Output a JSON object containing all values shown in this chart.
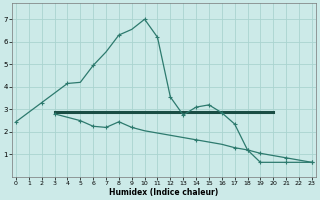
{
  "xlabel": "Humidex (Indice chaleur)",
  "background_color": "#cceae8",
  "grid_color": "#aad4d0",
  "line_color": "#2d7a6e",
  "line_color_thick": "#1a4d44",
  "curve1_x": [
    0,
    2,
    4,
    5,
    6,
    7,
    8,
    9,
    10,
    11,
    12,
    13,
    14,
    15,
    16,
    17,
    18,
    19,
    20,
    21,
    22,
    23
  ],
  "curve1_y": [
    2.45,
    3.3,
    4.15,
    4.2,
    4.95,
    5.55,
    6.3,
    6.55,
    7.0,
    6.2,
    3.55,
    2.75,
    3.1,
    3.2,
    2.85,
    2.35,
    1.2,
    0.65,
    0.65,
    0.65,
    0.65,
    0.65
  ],
  "curve1_marker_x": [
    0,
    2,
    4,
    6,
    8,
    10,
    11,
    12,
    13,
    14,
    15,
    16,
    17,
    18,
    19,
    21,
    23
  ],
  "curve1_marker_y": [
    2.45,
    3.3,
    4.15,
    4.95,
    6.3,
    7.0,
    6.2,
    3.55,
    2.75,
    3.1,
    3.2,
    2.85,
    2.35,
    1.2,
    0.65,
    0.65,
    0.65
  ],
  "curve2_x": [
    3,
    4,
    5,
    6,
    7,
    8,
    9,
    10,
    11,
    12,
    13,
    14,
    15,
    16,
    17,
    18,
    19,
    20,
    21,
    22,
    23
  ],
  "curve2_y": [
    2.8,
    2.65,
    2.5,
    2.25,
    2.2,
    2.45,
    2.2,
    2.05,
    1.95,
    1.85,
    1.75,
    1.65,
    1.55,
    1.45,
    1.3,
    1.2,
    1.05,
    0.95,
    0.85,
    0.75,
    0.65
  ],
  "curve2_marker_x": [
    3,
    5,
    6,
    7,
    8,
    9,
    14,
    17,
    18,
    19,
    21,
    23
  ],
  "curve2_marker_y": [
    2.8,
    2.5,
    2.25,
    2.2,
    2.45,
    2.2,
    1.65,
    1.3,
    1.2,
    1.05,
    0.85,
    0.65
  ],
  "hline_y": 2.9,
  "hline_xmin": 3,
  "hline_xmax": 20,
  "xlim": [
    -0.3,
    23.3
  ],
  "ylim": [
    0,
    7.7
  ],
  "yticks": [
    1,
    2,
    3,
    4,
    5,
    6,
    7
  ],
  "xticks": [
    0,
    1,
    2,
    3,
    4,
    5,
    6,
    7,
    8,
    9,
    10,
    11,
    12,
    13,
    14,
    15,
    16,
    17,
    18,
    19,
    20,
    21,
    22,
    23
  ]
}
